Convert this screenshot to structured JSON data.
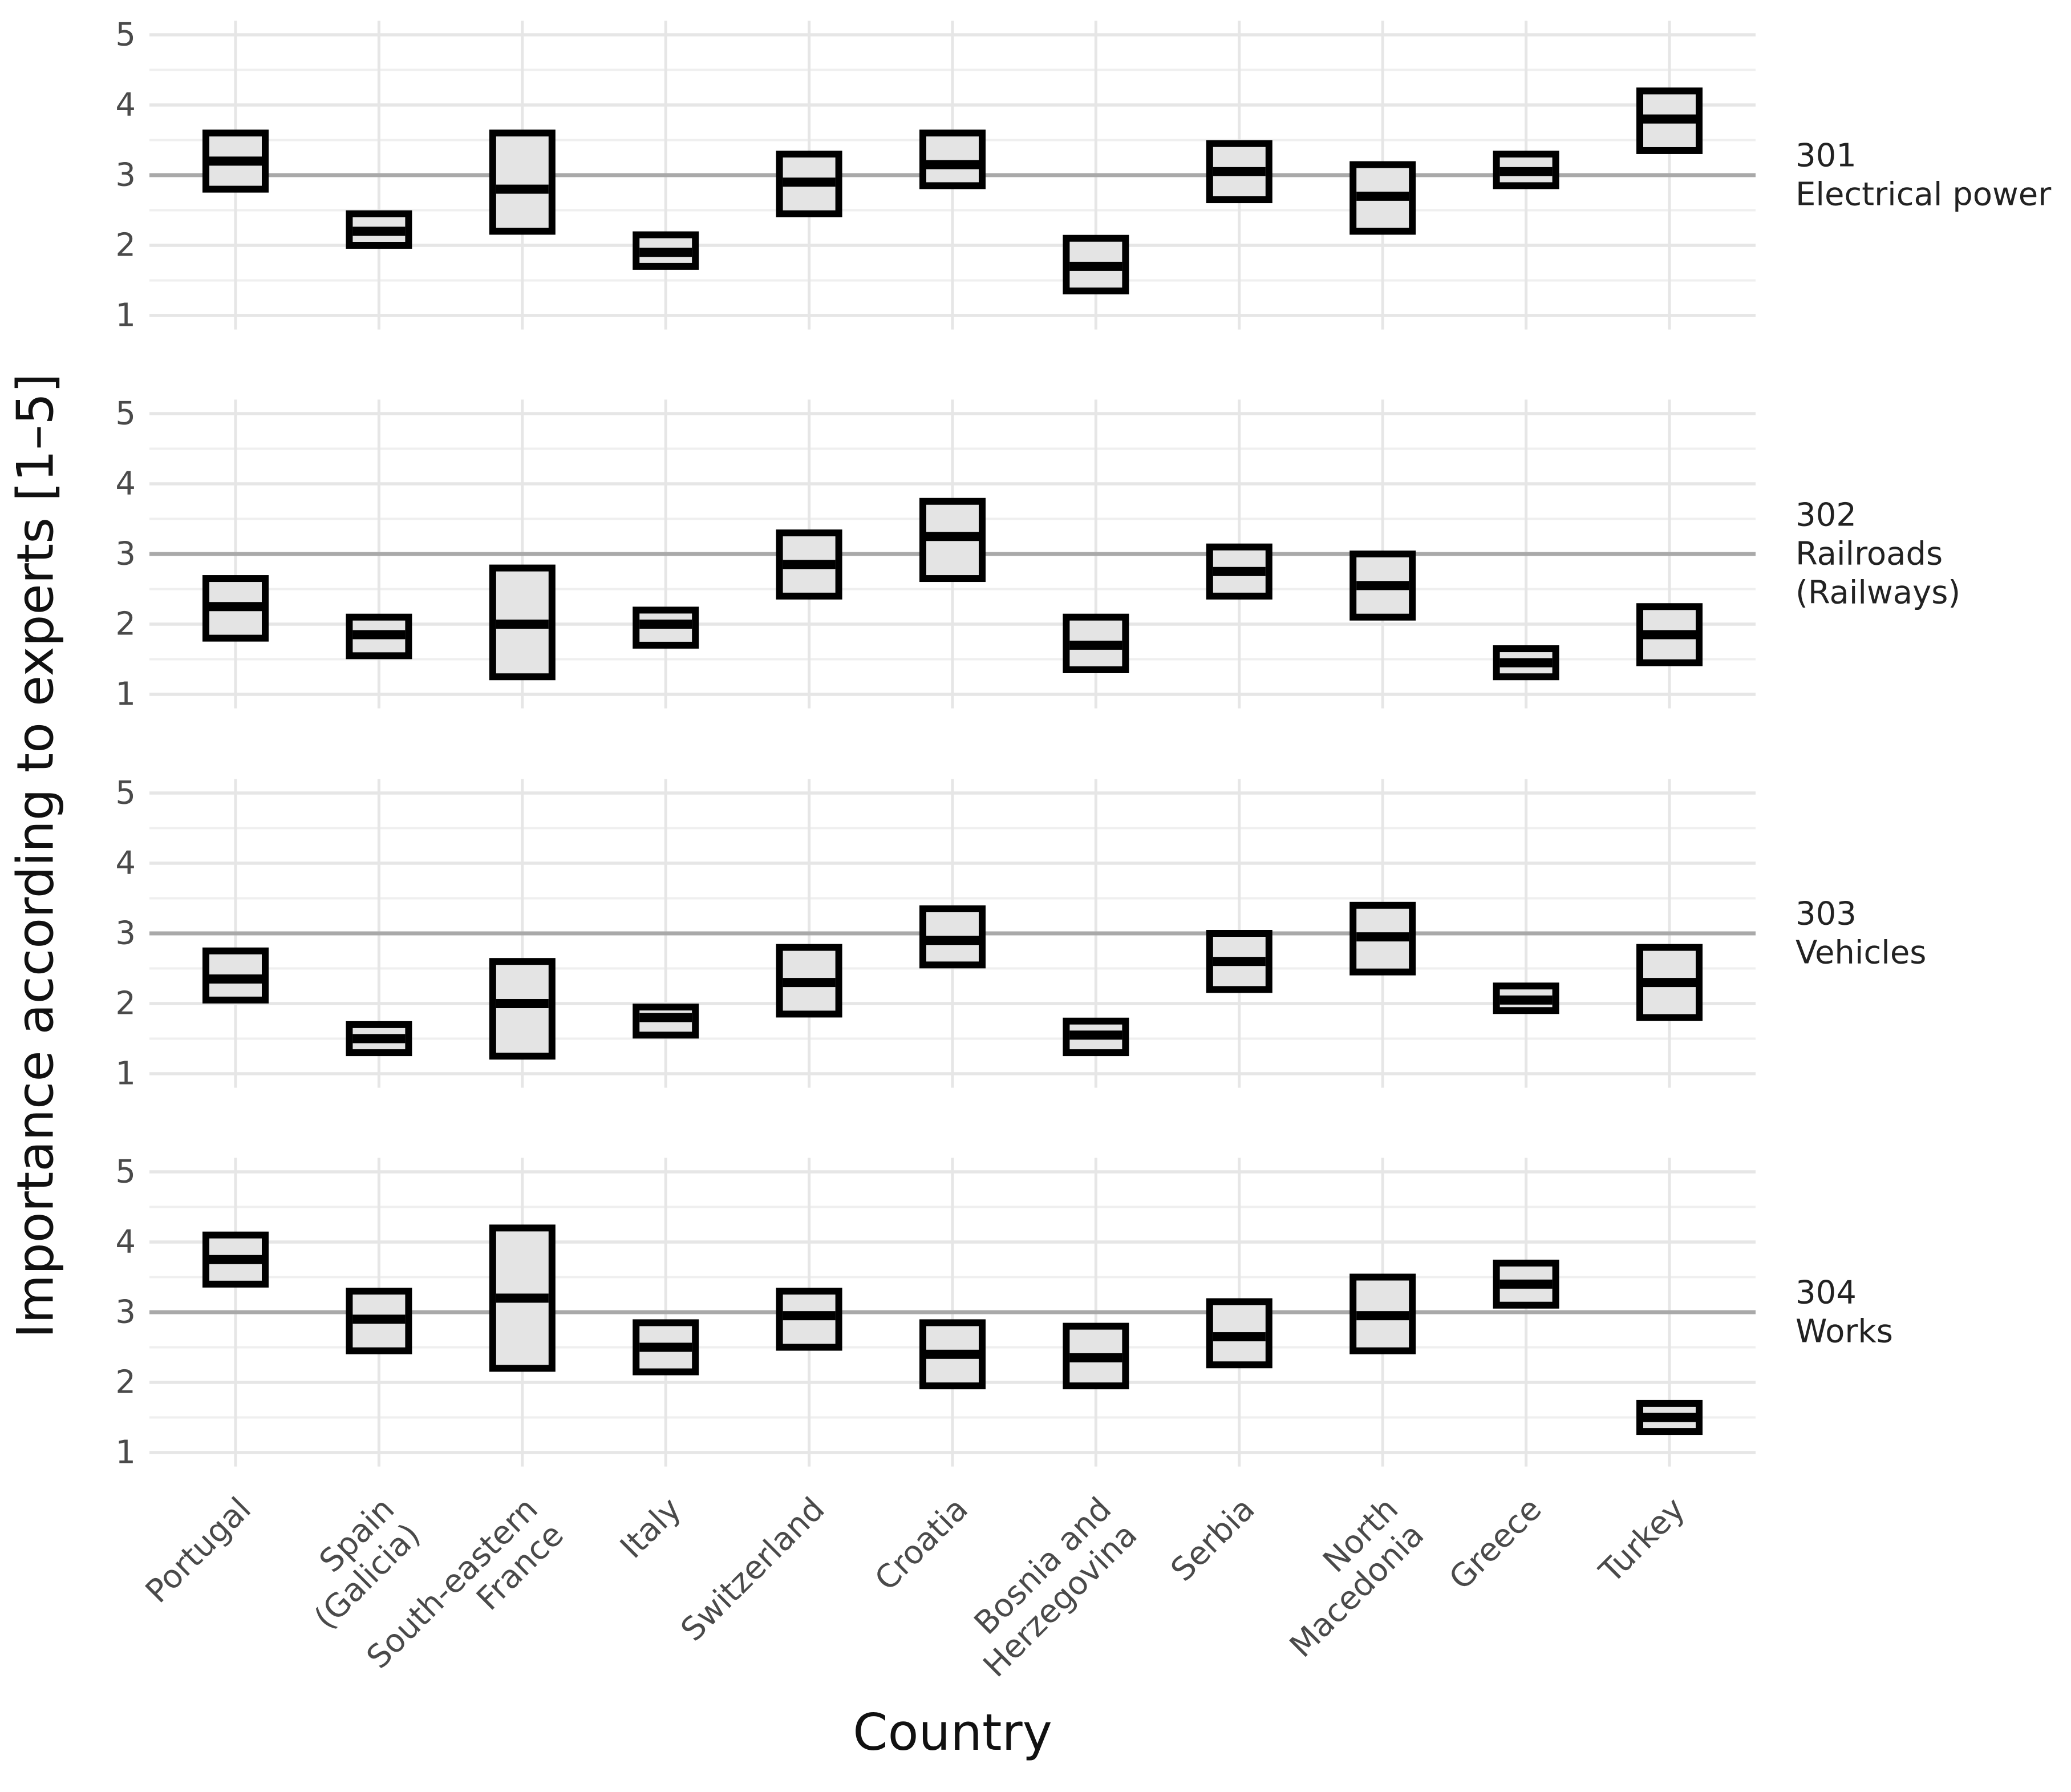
{
  "chart_data": {
    "type": "box",
    "title": "",
    "xlabel": "Country",
    "ylabel": "Importance according to experts [1–5]",
    "ylim": [
      1,
      5
    ],
    "y_ticks": [
      1,
      2,
      3,
      4,
      5
    ],
    "reference_line": 3,
    "grid": "on",
    "legend": "none",
    "whiskers": false,
    "categories": [
      "Portugal",
      "Spain\n(Galicia)",
      "South-eastern\nFrance",
      "Italy",
      "Switzerland",
      "Croatia",
      "Bosnia and\nHerzegovina",
      "Serbia",
      "North\nMacedonia",
      "Greece",
      "Turkey"
    ],
    "facets": [
      {
        "code": "301",
        "name": "Electrical power",
        "label": "301\nElectrical power",
        "lower": [
          2.8,
          2.0,
          2.2,
          1.7,
          2.45,
          2.85,
          1.35,
          2.65,
          2.2,
          2.85,
          3.35
        ],
        "median": [
          3.2,
          2.2,
          2.8,
          1.9,
          2.9,
          3.15,
          1.7,
          3.05,
          2.7,
          3.05,
          3.8
        ],
        "upper": [
          3.6,
          2.45,
          3.6,
          2.15,
          3.3,
          3.6,
          2.1,
          3.45,
          3.15,
          3.3,
          4.2
        ]
      },
      {
        "code": "302",
        "name": "Railroads (Railways)",
        "label": "302\nRailroads\n(Railways)",
        "lower": [
          1.8,
          1.55,
          1.25,
          1.7,
          2.4,
          2.65,
          1.35,
          2.4,
          2.1,
          1.25,
          1.45
        ],
        "median": [
          2.25,
          1.85,
          2.0,
          2.0,
          2.85,
          3.25,
          1.7,
          2.75,
          2.55,
          1.45,
          1.85
        ],
        "upper": [
          2.65,
          2.1,
          2.8,
          2.2,
          3.3,
          3.75,
          2.1,
          3.1,
          3.0,
          1.65,
          2.25
        ]
      },
      {
        "code": "303",
        "name": "Vehicles",
        "label": "303\nVehicles",
        "lower": [
          2.05,
          1.3,
          1.25,
          1.55,
          1.85,
          2.55,
          1.3,
          2.2,
          2.45,
          1.9,
          1.8
        ],
        "median": [
          2.35,
          1.5,
          2.0,
          1.8,
          2.3,
          2.9,
          1.55,
          2.6,
          2.95,
          2.05,
          2.3
        ],
        "upper": [
          2.75,
          1.7,
          2.6,
          1.95,
          2.8,
          3.35,
          1.75,
          3.0,
          3.4,
          2.25,
          2.8
        ]
      },
      {
        "code": "304",
        "name": "Works",
        "label": "304\nWorks",
        "lower": [
          3.4,
          2.45,
          2.2,
          2.15,
          2.5,
          1.95,
          1.95,
          2.25,
          2.45,
          3.1,
          1.3
        ],
        "median": [
          3.75,
          2.9,
          3.2,
          2.5,
          2.95,
          2.4,
          2.35,
          2.65,
          2.95,
          3.4,
          1.5
        ],
        "upper": [
          4.1,
          3.3,
          4.2,
          2.85,
          3.3,
          2.85,
          2.8,
          3.15,
          3.5,
          3.7,
          1.7
        ]
      }
    ],
    "style": {
      "background": "#ffffff",
      "box_fill": "#e4e4e4",
      "box_stroke": "#000000",
      "median_color": "#000000",
      "grid_major": "#e6e6e6",
      "grid_minor": "#efefef",
      "reference_color": "#a9a9a9",
      "tick_text": "#4a4a4a",
      "facet_text": "#222222",
      "title_text": "#111111"
    }
  }
}
